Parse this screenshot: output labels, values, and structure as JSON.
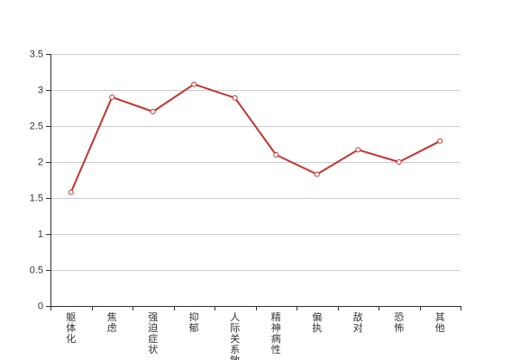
{
  "colors": {
    "series": "#c23531",
    "grid": "#cccccc",
    "axis": "#333333",
    "text": "#333333"
  },
  "chart_data": {
    "type": "line",
    "title": "",
    "xlabel": "",
    "ylabel": "",
    "categories": [
      "躯体化",
      "焦虑",
      "强迫症状",
      "抑郁",
      "人际关系敏感",
      "精神病性",
      "偏执",
      "敌对",
      "恐怖",
      "其他"
    ],
    "series": [
      {
        "values": [
          1.58,
          2.9,
          2.7,
          3.08,
          2.89,
          2.1,
          1.83,
          2.17,
          2.0,
          2.29
        ]
      }
    ],
    "ylim": [
      0,
      3.5
    ],
    "yticks": [
      "0",
      "0.5",
      "1",
      "1.5",
      "2",
      "2.5",
      "3",
      "3.5"
    ],
    "grid": true,
    "legend": "none",
    "x_label_orientation": "vertical"
  }
}
